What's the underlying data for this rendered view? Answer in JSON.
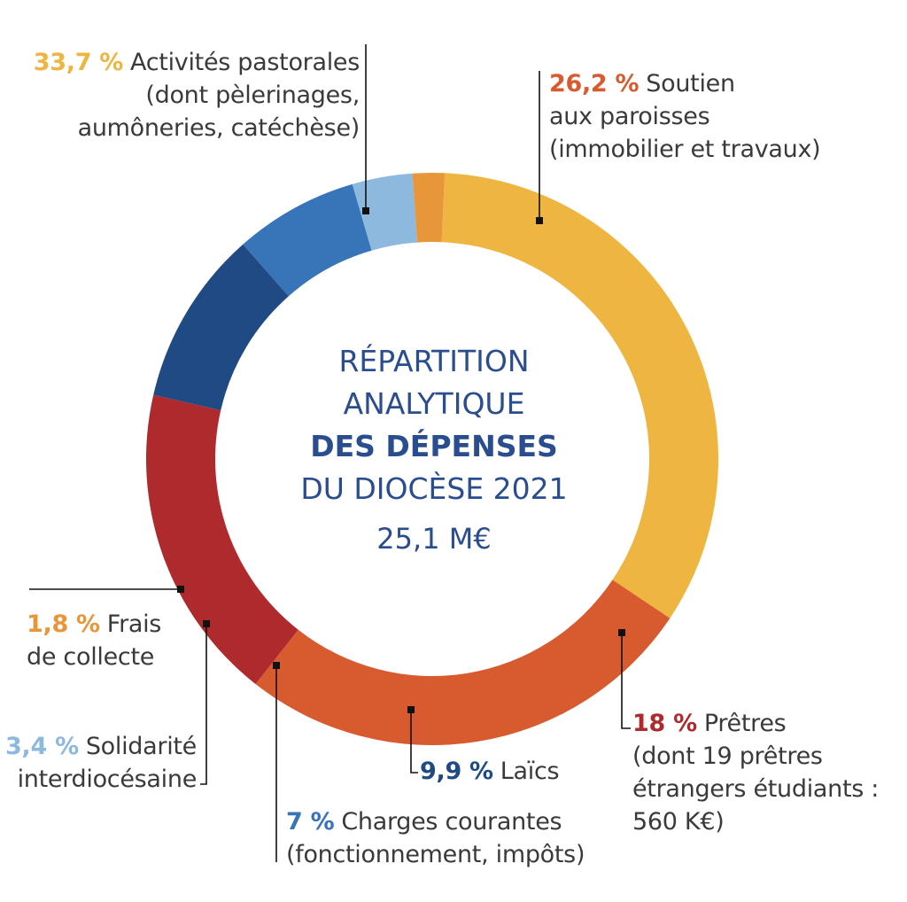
{
  "chart_data": {
    "type": "pie",
    "variant": "donut",
    "title": [
      "RÉPARTITION",
      "ANALYTIQUE",
      "DES DÉPENSES",
      "DU DIOCÈSE 2021"
    ],
    "total": "25,1 M€",
    "slices": [
      {
        "id": "pastorales",
        "value": 33.7,
        "pct_label": "33,7 %",
        "label_lines": [
          "Activités pastorales",
          "(dont pèlerinages,",
          "aumôneries, catéchèse)"
        ],
        "color": "#EFB541"
      },
      {
        "id": "paroisses",
        "value": 26.2,
        "pct_label": "26,2 %",
        "label_lines": [
          "Soutien",
          "aux paroisses",
          "(immobilier et travaux)"
        ],
        "color": "#D85B30"
      },
      {
        "id": "pretres",
        "value": 18,
        "pct_label": "18 %",
        "label_lines": [
          "Prêtres",
          "(dont 19 prêtres",
          "étrangers étudiants :",
          "560 K€)"
        ],
        "color": "#AE2A2D"
      },
      {
        "id": "laics",
        "value": 9.9,
        "pct_label": "9,9 %",
        "label_lines": [
          "Laïcs"
        ],
        "color": "#204A84"
      },
      {
        "id": "charges",
        "value": 7,
        "pct_label": "7 %",
        "label_lines": [
          "Charges courantes",
          "(fonctionnement, impôts)"
        ],
        "color": "#3775B8"
      },
      {
        "id": "solidarite",
        "value": 3.4,
        "pct_label": "3,4 %",
        "label_lines": [
          "Solidarité",
          "interdiocésaine"
        ],
        "color": "#8DB9DF"
      },
      {
        "id": "collecte",
        "value": 1.8,
        "pct_label": "1,8 %",
        "label_lines": [
          "Frais",
          "de collecte"
        ],
        "color": "#E8963A"
      }
    ],
    "pct_colors": {
      "pastorales": "#EFB541",
      "paroisses": "#D85B30",
      "pretres": "#AE2A2D",
      "laics": "#204A84",
      "charges": "#3775B8",
      "solidarite": "#8DB9DF",
      "collecte": "#E8963A"
    }
  }
}
